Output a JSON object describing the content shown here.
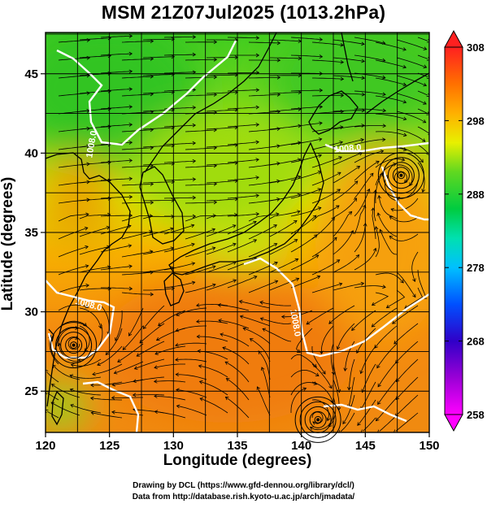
{
  "title": "MSM 21Z07Jul2025 (1013.2hPa)",
  "chart_data": {
    "type": "heatmap",
    "xlabel": "Longitude (degrees)",
    "ylabel": "Latitude  (degrees)",
    "xlim": [
      120,
      150
    ],
    "ylim": [
      22.4,
      47.6
    ],
    "x_ticks": [
      "120",
      "125",
      "130",
      "135",
      "140",
      "145",
      "150"
    ],
    "y_ticks": [
      "25",
      "30",
      "35",
      "40",
      "45"
    ],
    "colorbar": {
      "range": [
        258,
        308
      ],
      "tick_labels": [
        "308",
        "298",
        "288",
        "278",
        "268",
        "258"
      ],
      "extend": "both"
    },
    "field_color_scale": [
      "#ff00ff",
      "#9a00d6",
      "#3000c8",
      "#0030ff",
      "#0090ff",
      "#00d0f0",
      "#00e0a0",
      "#00cc40",
      "#40d020",
      "#a0e010",
      "#f0f000",
      "#ffc000",
      "#ff9000",
      "#ff5000",
      "#ff1010"
    ],
    "contour_labels": [
      "1008.0",
      "1008.0",
      "1008.0",
      "1008.0"
    ],
    "lows": [
      {
        "lon": 122.2,
        "lat": 27.9
      },
      {
        "lon": 147.8,
        "lat": 38.6
      },
      {
        "lon": 141.3,
        "lat": 23.2
      }
    ]
  },
  "credits": [
    "Drawing by DCL (https://www.gfd-dennou.org/library/dcl/)",
    "Data from http://database.rish.kyoto-u.ac.jp/arch/jmadata/"
  ]
}
